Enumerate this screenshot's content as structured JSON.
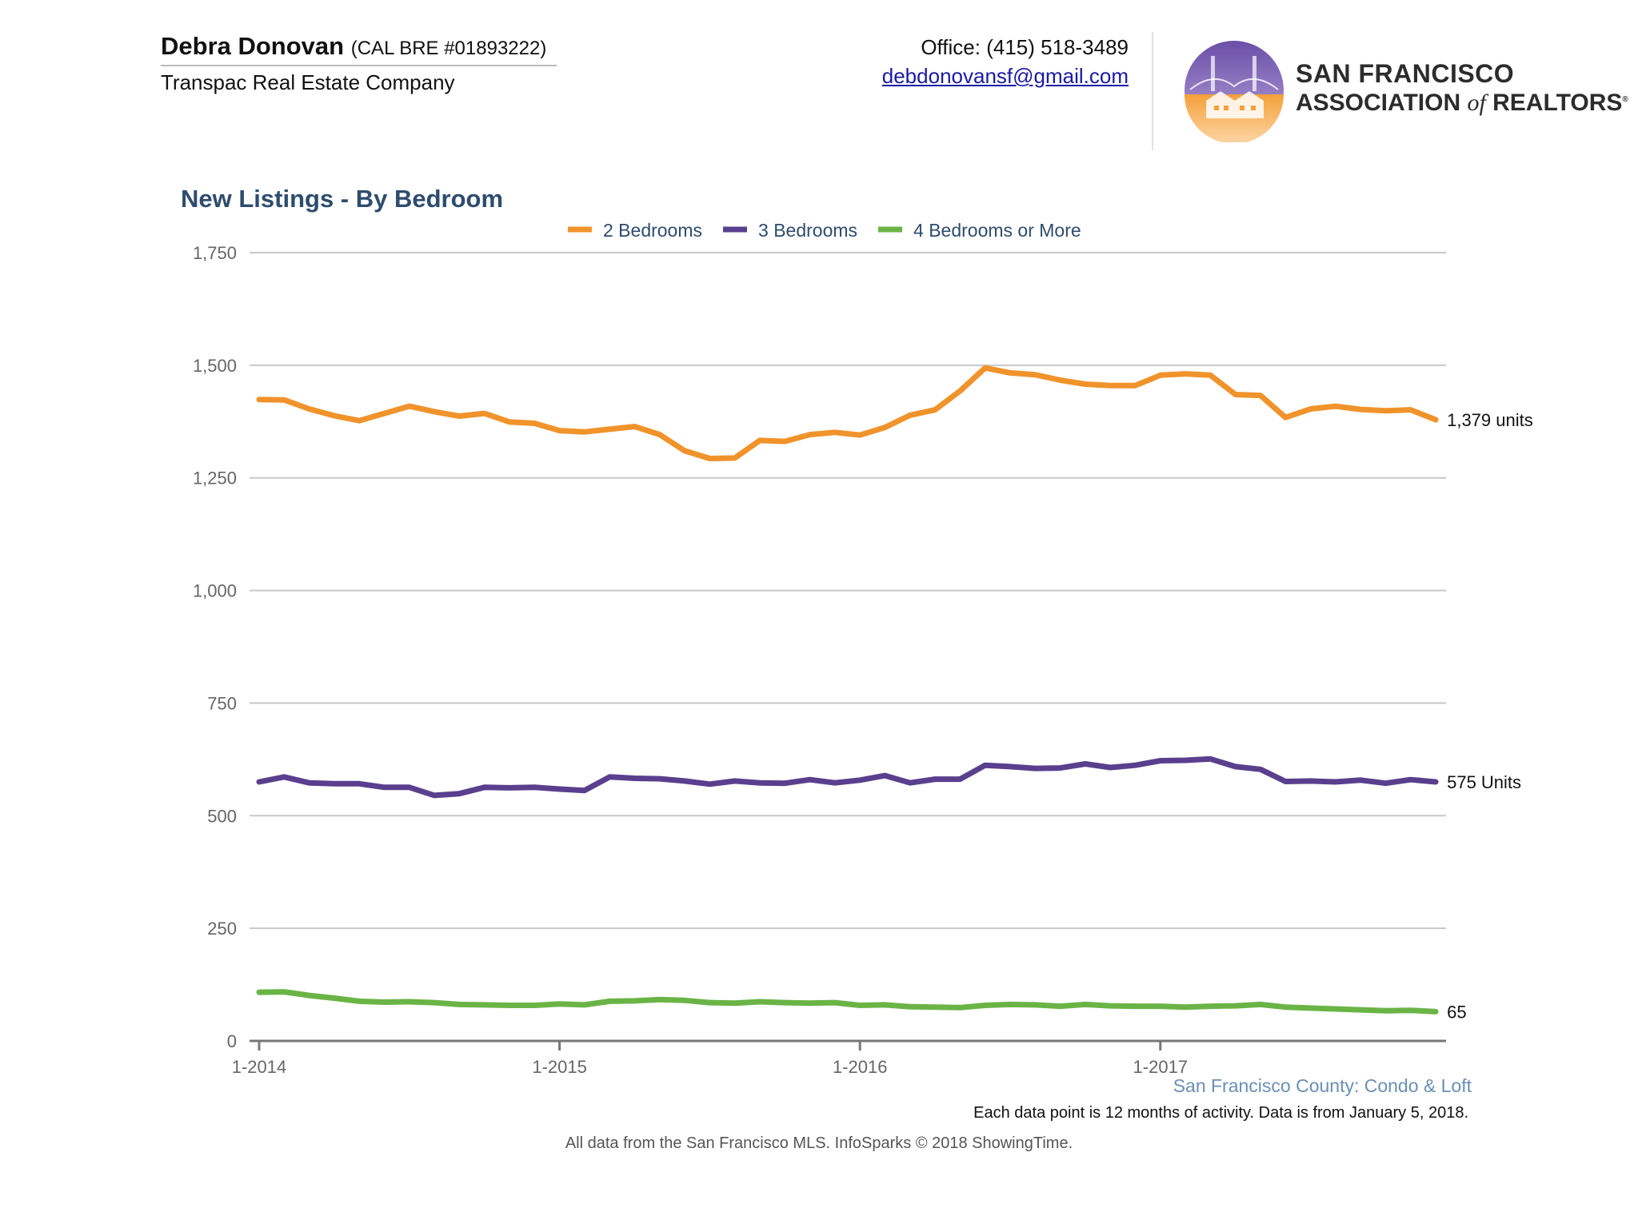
{
  "header": {
    "agent_name": "Debra Donovan",
    "agent_license": "(CAL BRE #01893222)",
    "company": "Transpac Real Estate Company",
    "office_phone": "Office: (415) 518-3489",
    "email": "debdonovansf@gmail.com",
    "association_line1": "SAN FRANCISCO",
    "association_line2_a": "ASSOCIATION ",
    "association_line2_of": "of",
    "association_line2_b": " REALTORS",
    "association_reg": "®"
  },
  "colors": {
    "two_bed": "#f0932b",
    "three_bed": "#5a3f8e",
    "four_bed": "#6ab446",
    "title": "#2e4c6d",
    "grid": "#c8c8c8",
    "axis_text": "#666666",
    "subtitle": "#6b8fb3"
  },
  "footer": {
    "region": "San Francisco County: Condo & Loft",
    "note": "Each data point is 12 months of activity. Data is from January 5, 2018.",
    "source": "All data from the San Francisco MLS. InfoSparks © 2018 ShowingTime."
  },
  "chart_data": {
    "type": "line",
    "title": "New Listings - By Bedroom",
    "xlabel": "",
    "ylabel": "",
    "ylim": [
      0,
      1750
    ],
    "yticks": [
      0,
      250,
      500,
      750,
      1000,
      1250,
      1500,
      1750
    ],
    "ytick_labels": [
      "0",
      "250",
      "500",
      "750",
      "1,000",
      "1,250",
      "1,500",
      "1,750"
    ],
    "xtick_labels": [
      "1-2014",
      "1-2015",
      "1-2016",
      "1-2017"
    ],
    "x": [
      "1-2014",
      "2-2014",
      "3-2014",
      "4-2014",
      "5-2014",
      "6-2014",
      "7-2014",
      "8-2014",
      "9-2014",
      "10-2014",
      "11-2014",
      "12-2014",
      "1-2015",
      "2-2015",
      "3-2015",
      "4-2015",
      "5-2015",
      "6-2015",
      "7-2015",
      "8-2015",
      "9-2015",
      "10-2015",
      "11-2015",
      "12-2015",
      "1-2016",
      "2-2016",
      "3-2016",
      "4-2016",
      "5-2016",
      "6-2016",
      "7-2016",
      "8-2016",
      "9-2016",
      "10-2016",
      "11-2016",
      "12-2016",
      "1-2017",
      "2-2017",
      "3-2017",
      "4-2017",
      "5-2017",
      "6-2017",
      "7-2017",
      "8-2017",
      "9-2017",
      "10-2017",
      "11-2017",
      "12-2017"
    ],
    "legend_position": "top",
    "grid": true,
    "series": [
      {
        "name": "2 Bedrooms",
        "values": [
          1424,
          1423,
          1403,
          1388,
          1377,
          1393,
          1409,
          1397,
          1387,
          1393,
          1374,
          1371,
          1355,
          1352,
          1358,
          1364,
          1346,
          1310,
          1293,
          1294,
          1333,
          1331,
          1346,
          1351,
          1345,
          1362,
          1389,
          1401,
          1443,
          1494,
          1483,
          1479,
          1467,
          1458,
          1455,
          1455,
          1478,
          1481,
          1478,
          1435,
          1433,
          1384,
          1403,
          1409,
          1402,
          1399,
          1401,
          1379
        ],
        "end_label": "1,379 units"
      },
      {
        "name": "3 Bedrooms",
        "values": [
          575,
          586,
          573,
          571,
          571,
          563,
          563,
          545,
          549,
          563,
          562,
          563,
          559,
          556,
          586,
          583,
          582,
          577,
          570,
          577,
          573,
          572,
          580,
          573,
          579,
          589,
          573,
          581,
          581,
          612,
          609,
          605,
          606,
          615,
          607,
          612,
          622,
          623,
          626,
          609,
          603,
          576,
          577,
          575,
          579,
          572,
          580,
          575
        ],
        "end_label": "575 Units"
      },
      {
        "name": "4 Bedrooms or More",
        "values": [
          108,
          109,
          101,
          95,
          88,
          86,
          87,
          85,
          81,
          80,
          79,
          79,
          82,
          80,
          88,
          89,
          92,
          90,
          85,
          84,
          87,
          85,
          84,
          85,
          79,
          80,
          76,
          75,
          74,
          79,
          81,
          80,
          77,
          81,
          78,
          77,
          77,
          75,
          77,
          78,
          81,
          75,
          73,
          71,
          69,
          67,
          68,
          65
        ],
        "end_label": "65"
      }
    ]
  }
}
